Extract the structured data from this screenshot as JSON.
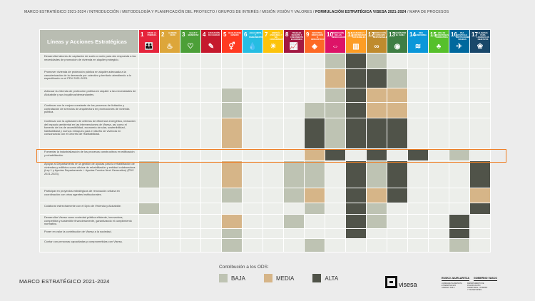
{
  "breadcrumb": {
    "prefix": "MARCO ESTRATÉGICO 2021-2024 / INTRODUCCIÓN / METODOLOGÍA Y PLANIFICACIÓN DEL PROYECTO / GRUPOS DE INTERÉS / MISIÓN VISIÓN Y VALORES / ",
    "current": "FORMULACIÓN ESTRATÉGICA VISESA 2021-2024",
    "suffix": " / MAPA DE PROCESOS"
  },
  "table": {
    "header_label": "Líneas y Acciones Estratégicas",
    "sdgs": [
      {
        "num": "1",
        "label": "Fin de la pobreza",
        "color": "#e5243b",
        "icon": "people-icon",
        "glyph": "👪"
      },
      {
        "num": "2",
        "label": "Hambre cero",
        "color": "#dda63a",
        "icon": "bowl-icon",
        "glyph": "♨"
      },
      {
        "num": "3",
        "label": "Salud y bienestar",
        "color": "#4c9f38",
        "icon": "heartbeat-icon",
        "glyph": "♡"
      },
      {
        "num": "4",
        "label": "Educación de calidad",
        "color": "#c5192d",
        "icon": "book-icon",
        "glyph": "✎"
      },
      {
        "num": "5",
        "label": "Igualdad de género",
        "color": "#ff3a21",
        "icon": "gender-icon",
        "glyph": "⚥"
      },
      {
        "num": "6",
        "label": "Agua limpia y saneamiento",
        "color": "#26bde2",
        "icon": "water-icon",
        "glyph": "💧"
      },
      {
        "num": "7",
        "label": "Energía asequible y no contaminante",
        "color": "#fcc30b",
        "icon": "sun-icon",
        "glyph": "☀"
      },
      {
        "num": "8",
        "label": "Trabajo decente y crecimiento económico",
        "color": "#a21942",
        "icon": "chart-icon",
        "glyph": "📈"
      },
      {
        "num": "9",
        "label": "Industria, innovación e infraestructura",
        "color": "#fd6925",
        "icon": "cubes-icon",
        "glyph": "◈"
      },
      {
        "num": "10",
        "label": "Reducción de las desigualdades",
        "color": "#dd1367",
        "icon": "equal-icon",
        "glyph": "⇔"
      },
      {
        "num": "11",
        "label": "Ciudades y comunidades sostenibles",
        "color": "#fd9d24",
        "icon": "city-icon",
        "glyph": "▥"
      },
      {
        "num": "12",
        "label": "Producción y consumo responsables",
        "color": "#bf8b2e",
        "icon": "infinity-icon",
        "glyph": "∞"
      },
      {
        "num": "13",
        "label": "Acción por el clima",
        "color": "#3f7e44",
        "icon": "eye-icon",
        "glyph": "◉"
      },
      {
        "num": "14",
        "label": "Vida submarina",
        "color": "#0a97d9",
        "icon": "fish-icon",
        "glyph": "≋"
      },
      {
        "num": "15",
        "label": "Vida de ecosistemas terrestres",
        "color": "#56c02b",
        "icon": "tree-icon",
        "glyph": "♣"
      },
      {
        "num": "16",
        "label": "Paz, justicia e instituciones sólidas",
        "color": "#00689d",
        "icon": "dove-icon",
        "glyph": "✈"
      },
      {
        "num": "17",
        "label": "Alianzas para lograr los objetivos",
        "color": "#19486a",
        "icon": "flower-icon",
        "glyph": "❀"
      }
    ],
    "rows": [
      {
        "label": "Desarrollar labores de captación de suelo o vuelo para dar respuesta a las necesidades de promoción de vivienda en alquiler protegido.",
        "cells": [
          "",
          "",
          "",
          "",
          "",
          "",
          "",
          "",
          "",
          "b",
          "a",
          "b",
          "",
          "",
          "",
          "",
          ""
        ]
      },
      {
        "label": "Promover vivienda de protección pública en alquiler adecuada a la caracterización de la demanda por colectivo y territorio atendiendo a lo especificado en el PDV 2021-2023.",
        "cells": [
          "",
          "",
          "",
          "",
          "",
          "",
          "",
          "",
          "",
          "m",
          "a",
          "a",
          "b",
          "",
          "",
          "",
          ""
        ]
      },
      {
        "label": "Adecuar la vivienda de protección pública en alquiler a las necesidades de Alokabide y sus inquilinos/demandantes.",
        "cells": [
          "",
          "",
          "",
          "",
          "b",
          "",
          "",
          "",
          "",
          "b",
          "a",
          "m",
          "m",
          "",
          "",
          "",
          ""
        ]
      },
      {
        "label": "Continuar con la mejora constante de los procesos de licitación y contratación de servicios de arquitectura en promociones de vivienda pública.",
        "cells": [
          "",
          "",
          "",
          "",
          "b",
          "",
          "",
          "",
          "b",
          "b",
          "a",
          "m",
          "m",
          "",
          "",
          "",
          ""
        ]
      },
      {
        "label": "Continuar con la aplicación de criterios de eficiencia energética, reducción del impacto ambiental en las intervenciones de Visesa, así como el fomento de los de accesibilidad, economía circular, sostenibilidad, habitabilidad y nuevos enfoques para el diseño de vivienda en consonancia con el Decreto de Habitabilidad.",
        "cells": [
          "",
          "",
          "",
          "",
          "m",
          "",
          "",
          "",
          "a",
          "b",
          "a",
          "a",
          "a",
          "",
          "",
          "",
          ""
        ]
      },
      {
        "label": "Fomentar la industrialización de los procesos constructivos en edificación y rehabilitación.",
        "cells": [
          "",
          "",
          "",
          "",
          "",
          "",
          "",
          "",
          "m",
          "a",
          "",
          "a",
          "",
          "a",
          "",
          "b",
          ""
        ]
      },
      {
        "label": "Apoyar al Departamento en la gestión de ayudas para la rehabilitación de viviendas y edificios como oficina de rehabilitación y entidad colaboradora (Ley 1 y Ayudas Departamento + Ayudas Fondos Next Generation) (PDV 2021-2023).",
        "cells": [
          "b",
          "",
          "",
          "",
          "m",
          "",
          "",
          "b",
          "b",
          "",
          "a",
          "b",
          "a",
          "",
          "",
          "",
          "a"
        ]
      },
      {
        "label": "Participar en proyectos estratégicos de renovación urbana en coordinación con otros agentes institucionales.",
        "cells": [
          "",
          "",
          "",
          "",
          "b",
          "",
          "",
          "b",
          "m",
          "",
          "a",
          "m",
          "a",
          "",
          "",
          "",
          "m"
        ]
      },
      {
        "label": "Colaborar estrechamente con el Dpto de Vivienda y Alokabide.",
        "cells": [
          "b",
          "",
          "",
          "",
          "",
          "",
          "",
          "",
          "b",
          "",
          "a",
          "b",
          "",
          "",
          "",
          "",
          "a"
        ]
      },
      {
        "label": "Desarrollar Visesa como sociedad pública eficiente, innovadora, competitiva y sostenible financieramente, garantizando el cumplimiento normativo.",
        "cells": [
          "",
          "",
          "",
          "",
          "m",
          "",
          "",
          "b",
          "",
          "",
          "a",
          "b",
          "",
          "",
          "",
          "a",
          ""
        ]
      },
      {
        "label": "Poner en valor la contribución de Visesa a la sociedad.",
        "cells": [
          "",
          "",
          "",
          "",
          "b",
          "",
          "",
          "",
          "",
          "",
          "a",
          "",
          "",
          "",
          "",
          "a",
          ""
        ]
      },
      {
        "label": "Contar con personas capacitadas y comprometidas con Visesa.",
        "cells": [
          "",
          "",
          "",
          "",
          "b",
          "",
          "",
          "",
          "b",
          "",
          "",
          "",
          "",
          "",
          "",
          "b",
          ""
        ]
      }
    ]
  },
  "legend": {
    "title": "Contribución a los ODS:",
    "items": [
      {
        "label": "BAJA",
        "color": "#bec3b3"
      },
      {
        "label": "MEDIA",
        "color": "#d6b588"
      },
      {
        "label": "ALTA",
        "color": "#505349"
      }
    ]
  },
  "footer": {
    "title": "MARCO ESTRATÉGICO 2021-2024",
    "logo_word": "visesa",
    "gov": [
      {
        "name": "EUSKO JAURLARITZA",
        "dept": "LURRALDE PLANGINTZA, ETXEBIZITZA ETA GARRAIO SAILA"
      },
      {
        "name": "GOBIERNO VASCO",
        "dept": "DEPARTAMENTO DE PLANIFICACIÓN TERRITORIAL, VIVIENDA Y TRANSPORTES"
      }
    ]
  }
}
